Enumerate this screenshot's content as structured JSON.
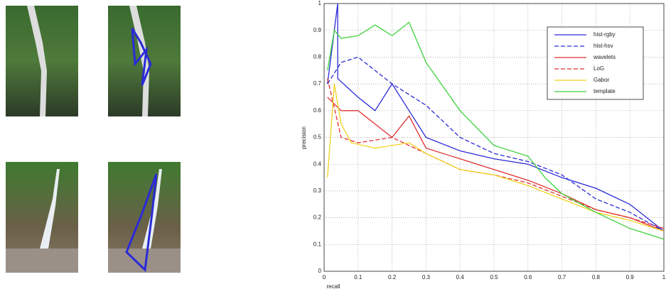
{
  "chart_data": {
    "type": "line",
    "xlabel": "recall",
    "ylabel": "precision",
    "xlim": [
      0,
      1
    ],
    "ylim": [
      0,
      1
    ],
    "xticks": [
      0,
      0.1,
      0.2,
      0.3,
      0.4,
      0.5,
      0.6,
      0.7,
      0.8,
      0.9,
      1
    ],
    "yticks": [
      0,
      0.1,
      0.2,
      0.3,
      0.4,
      0.5,
      0.6,
      0.7,
      0.8,
      0.9,
      1
    ],
    "grid": true,
    "legend": "upper right",
    "series": [
      {
        "name": "hist-rgby",
        "color": "#2a2ad8",
        "dash": false,
        "x": [
          0.01,
          0.04,
          0.04,
          0.1,
          0.15,
          0.2,
          0.25,
          0.3,
          0.4,
          0.5,
          0.6,
          0.7,
          0.8,
          0.9,
          1
        ],
        "values": [
          0.7,
          1.0,
          0.72,
          0.65,
          0.6,
          0.7,
          0.6,
          0.5,
          0.45,
          0.42,
          0.4,
          0.35,
          0.31,
          0.25,
          0.15
        ]
      },
      {
        "name": "hist-hsv",
        "color": "#2a2ad8",
        "dash": true,
        "x": [
          0.01,
          0.05,
          0.1,
          0.15,
          0.2,
          0.3,
          0.4,
          0.5,
          0.6,
          0.7,
          0.8,
          0.9,
          1
        ],
        "values": [
          0.7,
          0.78,
          0.8,
          0.75,
          0.7,
          0.62,
          0.5,
          0.44,
          0.41,
          0.36,
          0.27,
          0.22,
          0.15
        ]
      },
      {
        "name": "wavelets",
        "color": "#e03030",
        "dash": false,
        "x": [
          0.01,
          0.05,
          0.1,
          0.15,
          0.2,
          0.25,
          0.3,
          0.4,
          0.5,
          0.6,
          0.7,
          0.8,
          0.9,
          1
        ],
        "values": [
          0.65,
          0.6,
          0.6,
          0.55,
          0.5,
          0.58,
          0.46,
          0.42,
          0.38,
          0.34,
          0.29,
          0.23,
          0.2,
          0.15
        ]
      },
      {
        "name": "LoG",
        "color": "#e03030",
        "dash": true,
        "x": [
          0.01,
          0.05,
          0.1,
          0.2,
          0.3,
          0.4,
          0.5,
          0.6,
          0.7,
          0.8,
          0.9,
          1
        ],
        "values": [
          0.72,
          0.5,
          0.48,
          0.5,
          0.44,
          0.38,
          0.36,
          0.33,
          0.28,
          0.23,
          0.2,
          0.16
        ]
      },
      {
        "name": "Gabor",
        "color": "#f2d21e",
        "dash": false,
        "x": [
          0.01,
          0.03,
          0.05,
          0.08,
          0.15,
          0.25,
          0.3,
          0.4,
          0.5,
          0.6,
          0.7,
          0.8,
          0.9,
          1
        ],
        "values": [
          0.35,
          0.7,
          0.55,
          0.48,
          0.46,
          0.48,
          0.44,
          0.38,
          0.36,
          0.32,
          0.27,
          0.22,
          0.19,
          0.15
        ]
      },
      {
        "name": "template",
        "color": "#3cd23c",
        "dash": false,
        "x": [
          0.01,
          0.03,
          0.05,
          0.1,
          0.15,
          0.2,
          0.25,
          0.3,
          0.4,
          0.5,
          0.6,
          0.65,
          0.7,
          0.8,
          0.9,
          1
        ],
        "values": [
          0.75,
          0.9,
          0.87,
          0.88,
          0.92,
          0.88,
          0.93,
          0.78,
          0.6,
          0.47,
          0.43,
          0.35,
          0.29,
          0.22,
          0.16,
          0.12
        ]
      }
    ]
  }
}
